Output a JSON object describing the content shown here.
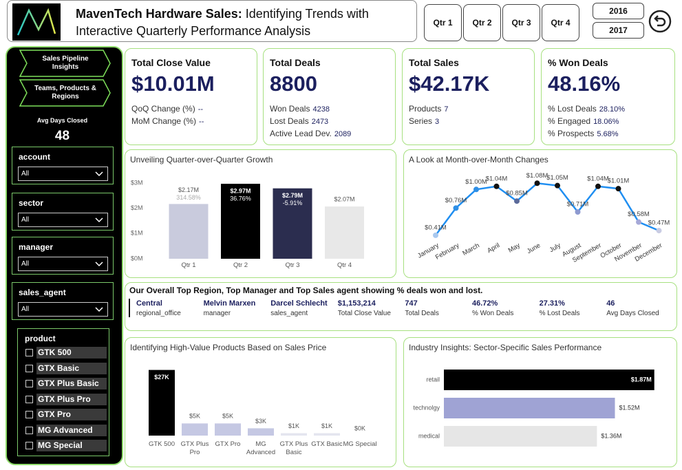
{
  "header": {
    "title_bold": "MavenTech Hardware Sales:",
    "title_rest": "Identifying Trends with Interactive Quarterly Performance Analysis"
  },
  "quarters": [
    "Qtr 1",
    "Qtr 2",
    "Qtr 3",
    "Qtr 4"
  ],
  "years": [
    "2016",
    "2017"
  ],
  "nav": [
    "Sales Pipeline Insights",
    "Teams, Products & Regions"
  ],
  "avg_days": {
    "label": "Avg Days Closed",
    "value": 48
  },
  "filters": [
    {
      "label": "account",
      "value": "All"
    },
    {
      "label": "sector",
      "value": "All"
    },
    {
      "label": "manager",
      "value": "All"
    },
    {
      "label": "sales_agent",
      "value": "All"
    }
  ],
  "product_filter": {
    "label": "product",
    "options": [
      "GTK 500",
      "GTX Basic",
      "GTX Plus Basic",
      "GTX Plus Pro",
      "GTX Pro",
      "MG Advanced",
      "MG Special"
    ]
  },
  "kpis": [
    {
      "title": "Total Close Value",
      "value": "$10.01M",
      "lines": [
        {
          "label": "QoQ Change (%)",
          "value": "--"
        },
        {
          "label": "MoM Change (%)",
          "value": "--"
        }
      ]
    },
    {
      "title": "Total Deals",
      "value": 8800,
      "lines": [
        {
          "label": "Won Deals",
          "value": 4238
        },
        {
          "label": "Lost Deals",
          "value": 2473
        },
        {
          "label": "Active Lead Dev.",
          "value": 2089
        }
      ]
    },
    {
      "title": "Total Sales",
      "value": "$42.17K",
      "lines": [
        {
          "label": "Products",
          "value": 7
        },
        {
          "label": "Series",
          "value": 3
        }
      ]
    },
    {
      "title": "% Won Deals",
      "value": "48.16%",
      "lines": [
        {
          "label": "% Lost Deals",
          "value": "28.10%"
        },
        {
          "label": "% Engaged",
          "value": "18.06%"
        },
        {
          "label": "% Prospects",
          "value": "5.68%"
        }
      ]
    }
  ],
  "summary": {
    "title": "Our Overall Top Region, Top Manager and Top Sales agent showing % deals won and lost.",
    "items": [
      {
        "value": "Central",
        "label": "regional_office"
      },
      {
        "value": "Melvin Marxen",
        "label": "manager"
      },
      {
        "value": "Darcel Schlecht",
        "label": "sales_agent"
      },
      {
        "value": "$1,153,214",
        "label": "Total Close Value"
      },
      {
        "value": 747,
        "label": "Total Deals"
      },
      {
        "value": "46.72%",
        "label": "% Won Deals"
      },
      {
        "value": "27.31%",
        "label": "% Lost Deals"
      },
      {
        "value": 46,
        "label": "Avg Days Closed"
      }
    ]
  },
  "chart_data": [
    {
      "type": "bar",
      "title": "Unveiling Quarter-over-Quarter Growth",
      "categories": [
        "Qtr 1",
        "Qtr 2",
        "Qtr 3",
        "Qtr 4"
      ],
      "values": [
        2.17,
        2.97,
        2.79,
        2.07
      ],
      "value_labels": [
        "$2.17M",
        "$2.97M",
        "$2.79M",
        "$2.07M"
      ],
      "change_labels": [
        "314.58%",
        "36.76%",
        "-5.91%",
        null
      ],
      "colors": [
        "#c9cbdd",
        "#000000",
        "#2b2d4f",
        "#e8e8e8"
      ],
      "ylim": [
        0,
        3
      ],
      "yticks": [
        {
          "value": 0,
          "label": "$0M"
        },
        {
          "value": 1,
          "label": "$1M"
        },
        {
          "value": 2,
          "label": "$2M"
        },
        {
          "value": 3,
          "label": "$3M"
        }
      ]
    },
    {
      "type": "line",
      "title": "A Look at Month-over-Month Changes",
      "categories": [
        "January",
        "February",
        "March",
        "April",
        "May",
        "June",
        "July",
        "August",
        "September",
        "October",
        "November",
        "December"
      ],
      "values": [
        0.41,
        0.76,
        1.0,
        1.04,
        0.85,
        1.08,
        1.05,
        0.71,
        1.04,
        1.01,
        0.58,
        0.47
      ],
      "value_labels": [
        "$0.41M",
        "$0.76M",
        "$1.00M",
        "$1.04M",
        "$0.85M",
        "$1.08M",
        "$1.05M",
        "$0.71M",
        "$1.04M",
        "$1.01M",
        "$0.58M",
        "$0.47M"
      ],
      "color": "#1f8ef1",
      "point_colors": [
        "#a9c8ee",
        "#2e8fe6",
        "#2e8fe6",
        "#111111",
        "#5b6a9a",
        "#111111",
        "#111111",
        "#8e9ad0",
        "#111111",
        "#111111",
        "#a6a9d8",
        "#c9cce3"
      ],
      "ylim": [
        0.4,
        1.1
      ]
    },
    {
      "type": "bar",
      "title": "Identifying High-Value Products Based on Sales Price",
      "categories": [
        "GTK 500",
        "GTX Plus Pro",
        "GTX Pro",
        "MG Advanced",
        "GTX Plus Basic",
        "GTX Basic",
        "MG Special"
      ],
      "values": [
        27,
        5,
        5,
        3,
        1,
        1,
        0
      ],
      "value_labels": [
        "$27K",
        "$5K",
        "$5K",
        "$3K",
        "$1K",
        "$1K",
        "$0K"
      ],
      "colors": [
        "#000000",
        "#c5c8e3",
        "#c5c8e3",
        "#c5c8e3",
        "#e4e5ef",
        "#e4e5ef",
        "#e4e5ef"
      ],
      "ylim": [
        0,
        30
      ]
    },
    {
      "type": "hbar",
      "title": "Industry Insights: Sector-Specific Sales Performance",
      "categories": [
        "retail",
        "technolgy",
        "medical"
      ],
      "values": [
        1.87,
        1.52,
        1.36
      ],
      "value_labels": [
        "$1.87M",
        "$1.52M",
        "$1.36M"
      ],
      "colors": [
        "#000000",
        "#9fa3d4",
        "#e6e6e6"
      ],
      "xlim": [
        0,
        2
      ]
    }
  ]
}
